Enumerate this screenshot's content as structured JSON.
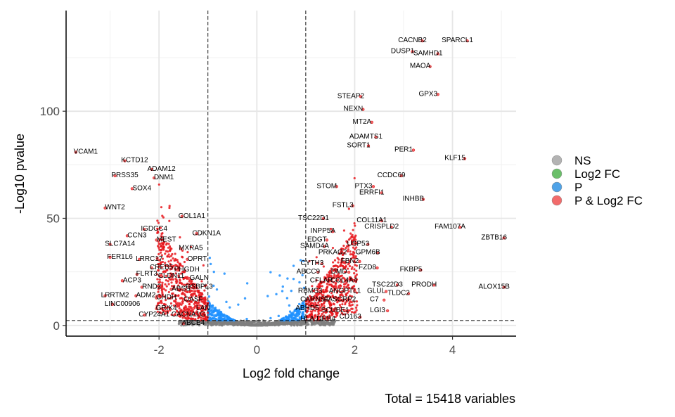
{
  "chart_data": {
    "type": "scatter",
    "subtype": "volcano",
    "title": "",
    "xlabel": "Log2 fold change",
    "ylabel": "-Log10 pvalue",
    "caption": "Total = 15418 variables",
    "xlim": [
      -3.9,
      5.3
    ],
    "ylim": [
      -5,
      147
    ],
    "x_ticks": [
      -2,
      0,
      2,
      4
    ],
    "x_tick_labels": [
      "-2",
      "0",
      "2",
      "4"
    ],
    "y_ticks": [
      0,
      50,
      100
    ],
    "y_tick_labels": [
      "0",
      "50",
      "100"
    ],
    "thresholds": {
      "log2fc": [
        -1,
        1
      ],
      "neg_log10_p": 2.3
    },
    "legend": {
      "position": "right",
      "entries": [
        {
          "key": "NS",
          "label": "NS",
          "color": "#b3b3b3"
        },
        {
          "key": "FC",
          "label": "Log2 FC",
          "color": "#6abf69"
        },
        {
          "key": "P",
          "label": "P",
          "color": "#4fa3e8"
        },
        {
          "key": "PFC",
          "label": "P & Log2 FC",
          "color": "#f26b6b"
        }
      ]
    },
    "colors": {
      "NS": "#7f7f7f",
      "P": "#1e90ff",
      "PFC": "#e8161c"
    },
    "labeled_points": [
      {
        "gene": "SPARCL1",
        "x": 4.1,
        "y": 133.5
      },
      {
        "gene": "CACNB2",
        "x": 3.18,
        "y": 133.5
      },
      {
        "gene": "DUSP1",
        "x": 2.98,
        "y": 128.5
      },
      {
        "gene": "SAMHD1",
        "x": 3.5,
        "y": 127.5
      },
      {
        "gene": "MAOA",
        "x": 3.34,
        "y": 121.5
      },
      {
        "gene": "GPX3",
        "x": 3.5,
        "y": 108.5
      },
      {
        "gene": "STEAP2",
        "x": 1.92,
        "y": 107.5
      },
      {
        "gene": "NEXN",
        "x": 1.97,
        "y": 101.5
      },
      {
        "gene": "MT2A",
        "x": 2.15,
        "y": 95.5
      },
      {
        "gene": "ADAMTS1",
        "x": 2.23,
        "y": 88.5
      },
      {
        "gene": "SORT1",
        "x": 2.08,
        "y": 84.5
      },
      {
        "gene": "PER1",
        "x": 3.0,
        "y": 82.5
      },
      {
        "gene": "KLF15",
        "x": 4.05,
        "y": 78.5
      },
      {
        "gene": "CCDC69",
        "x": 2.75,
        "y": 70.5
      },
      {
        "gene": "STOM",
        "x": 1.43,
        "y": 65.5
      },
      {
        "gene": "PTX3",
        "x": 2.18,
        "y": 65.5
      },
      {
        "gene": "ERRFI1",
        "x": 2.35,
        "y": 62.5
      },
      {
        "gene": "INHBB",
        "x": 3.2,
        "y": 59.5
      },
      {
        "gene": "FSTL3",
        "x": 1.76,
        "y": 56.5
      },
      {
        "gene": "COL11A1",
        "x": 2.35,
        "y": 49.5
      },
      {
        "gene": "TSC22D1",
        "x": 1.16,
        "y": 50.5
      },
      {
        "gene": "CRISPLD2",
        "x": 2.55,
        "y": 46.5
      },
      {
        "gene": "FAM107A",
        "x": 3.95,
        "y": 46.5
      },
      {
        "gene": "INPP5A",
        "x": 1.35,
        "y": 44.5
      },
      {
        "gene": "ZBTB16",
        "x": 4.85,
        "y": 41.5
      },
      {
        "gene": "EDGT",
        "x": 1.23,
        "y": 40.5
      },
      {
        "gene": "USP53",
        "x": 2.07,
        "y": 38.5
      },
      {
        "gene": "SAMD4A",
        "x": 1.18,
        "y": 37.5
      },
      {
        "gene": "PRKAG2",
        "x": 1.55,
        "y": 34.5
      },
      {
        "gene": "GPM6B",
        "x": 2.27,
        "y": 34.5
      },
      {
        "gene": "FBN2",
        "x": 1.9,
        "y": 30.5
      },
      {
        "gene": "CYTH3",
        "x": 1.13,
        "y": 29.5
      },
      {
        "gene": "FKBP5",
        "x": 3.15,
        "y": 26.5
      },
      {
        "gene": "FZD8",
        "x": 2.26,
        "y": 27.5
      },
      {
        "gene": "ABCC9",
        "x": 1.05,
        "y": 25.5
      },
      {
        "gene": "DMD",
        "x": 1.68,
        "y": 25.5
      },
      {
        "gene": "COL4A4",
        "x": 1.78,
        "y": 21.5
      },
      {
        "gene": "CFLAR",
        "x": 1.32,
        "y": 21.5
      },
      {
        "gene": "PRODH",
        "x": 3.42,
        "y": 19.5
      },
      {
        "gene": "TSC22D3",
        "x": 2.67,
        "y": 19.5
      },
      {
        "gene": "ALOX15B",
        "x": 4.85,
        "y": 18.5
      },
      {
        "gene": "ANGPTL1",
        "x": 1.8,
        "y": 16.5
      },
      {
        "gene": "GLUL",
        "x": 2.44,
        "y": 16.5
      },
      {
        "gene": "TLDC2",
        "x": 2.9,
        "y": 15.5
      },
      {
        "gene": "RBMS3",
        "x": 1.09,
        "y": 16.5
      },
      {
        "gene": "CARNS1",
        "x": 1.18,
        "y": 12.5
      },
      {
        "gene": "FASCRP2",
        "x": 1.7,
        "y": 12.5
      },
      {
        "gene": "C7",
        "x": 2.4,
        "y": 12.5
      },
      {
        "gene": "ABHD5",
        "x": 1.03,
        "y": 8.5
      },
      {
        "gene": "SCUBE1",
        "x": 1.6,
        "y": 7.5
      },
      {
        "gene": "LGI3",
        "x": 2.47,
        "y": 7.5
      },
      {
        "gene": "CD163",
        "x": 1.91,
        "y": 4.5
      },
      {
        "gene": "HLA-DRB4",
        "x": 1.25,
        "y": 3.5
      },
      {
        "gene": "VCAM1",
        "x": -3.5,
        "y": 81.5
      },
      {
        "gene": "KCTD12",
        "x": -2.5,
        "y": 77.5
      },
      {
        "gene": "ADAM12",
        "x": -1.95,
        "y": 73.5
      },
      {
        "gene": "PRSS35",
        "x": -2.7,
        "y": 70.5
      },
      {
        "gene": "DNM1",
        "x": -1.9,
        "y": 69.5
      },
      {
        "gene": "SOX4",
        "x": -2.35,
        "y": 64.5
      },
      {
        "gene": "WNT2",
        "x": -2.9,
        "y": 55.5
      },
      {
        "gene": "COL1A1",
        "x": -1.33,
        "y": 51.5
      },
      {
        "gene": "IGDCC4",
        "x": -2.1,
        "y": 45.5
      },
      {
        "gene": "CDKN1A",
        "x": -1.03,
        "y": 43.5
      },
      {
        "gene": "CCN3",
        "x": -2.45,
        "y": 42.5
      },
      {
        "gene": "MEST",
        "x": -1.85,
        "y": 40.5
      },
      {
        "gene": "SLC7A14",
        "x": -2.8,
        "y": 38.5
      },
      {
        "gene": "MXRA5",
        "x": -1.35,
        "y": 36.5
      },
      {
        "gene": "FER1L6",
        "x": -2.8,
        "y": 32.5
      },
      {
        "gene": "LRRC17",
        "x": -2.2,
        "y": 31.5
      },
      {
        "gene": "OPRT",
        "x": -1.22,
        "y": 31.5
      },
      {
        "gene": "CREB5",
        "x": -1.95,
        "y": 27.5
      },
      {
        "gene": "PHGDH",
        "x": -1.43,
        "y": 26.5
      },
      {
        "gene": "FLRT3",
        "x": -2.25,
        "y": 24.5
      },
      {
        "gene": "CLDN11",
        "x": -1.75,
        "y": 23.5
      },
      {
        "gene": "GALN",
        "x": -1.18,
        "y": 22.5
      },
      {
        "gene": "ACP3",
        "x": -2.55,
        "y": 21.5
      },
      {
        "gene": "RND2",
        "x": -2.15,
        "y": 18.5
      },
      {
        "gene": "ABSS",
        "x": -1.55,
        "y": 17.5
      },
      {
        "gene": "OSBPL3",
        "x": -1.18,
        "y": 18.5
      },
      {
        "gene": "LRRTM2",
        "x": -2.9,
        "y": 14.5
      },
      {
        "gene": "ADM2",
        "x": -2.27,
        "y": 14.5
      },
      {
        "gene": "CHDH",
        "x": -1.85,
        "y": 13.5
      },
      {
        "gene": "OASF",
        "x": -1.3,
        "y": 12.5
      },
      {
        "gene": "LINC00906",
        "x": -2.75,
        "y": 10.5
      },
      {
        "gene": "GRIK4",
        "x": -1.85,
        "y": 8.5
      },
      {
        "gene": "LAN",
        "x": -1.1,
        "y": 8.5
      },
      {
        "gene": "CYP24A1",
        "x": -2.1,
        "y": 5.5
      },
      {
        "gene": "CACNA1G",
        "x": -1.4,
        "y": 5.5
      },
      {
        "gene": "ABCB4",
        "x": -1.3,
        "y": 1.5
      }
    ]
  }
}
